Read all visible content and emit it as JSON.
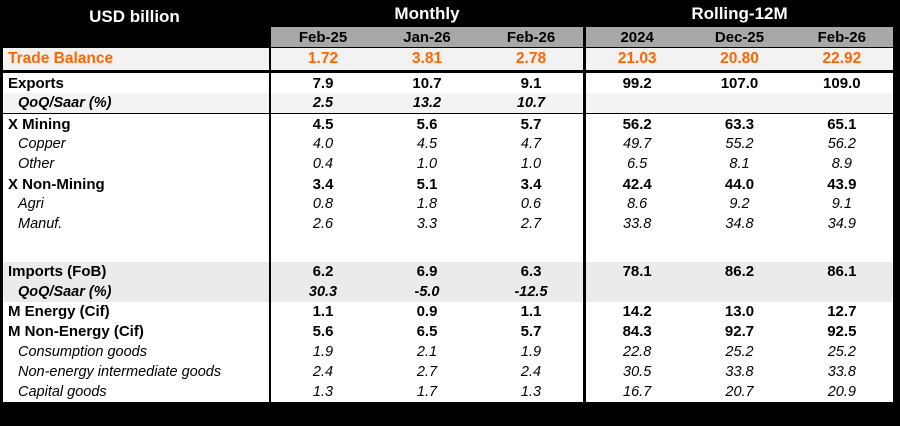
{
  "title": "USD billion",
  "colors": {
    "accent_orange": "#FF6600",
    "header_gray": "#A8A8A8",
    "trade_row_bg": "#F2F2F2",
    "shaded_row_light": "#F3F3F3",
    "shaded_row_medium": "#EBEBEB",
    "frame_black": "#000000"
  },
  "chart_data": {
    "type": "table",
    "title": "USD billion",
    "column_groups": [
      {
        "label": "Monthly",
        "columns": [
          "Feb-25",
          "Jan-26",
          "Feb-26"
        ]
      },
      {
        "label": "Rolling-12M",
        "columns": [
          "2024",
          "Dec-25",
          "Feb-26"
        ]
      }
    ],
    "rows": [
      {
        "label": "Trade Balance",
        "style": "trade",
        "values": [
          "1.72",
          "3.81",
          "2.78",
          "21.03",
          "20.80",
          "22.92"
        ],
        "divider_below": "thick"
      },
      {
        "label": "Exports",
        "style": "main",
        "values": [
          "7.9",
          "10.7",
          "9.1",
          "99.2",
          "107.0",
          "109.0"
        ]
      },
      {
        "label": "QoQ/Saar (%)",
        "style": "qoq",
        "shaded": "light",
        "values": [
          "2.5",
          "13.2",
          "10.7",
          "",
          "",
          ""
        ],
        "divider_below": "thin"
      },
      {
        "label": "X Mining",
        "style": "main",
        "values": [
          "4.5",
          "5.6",
          "5.7",
          "56.2",
          "63.3",
          "65.1"
        ]
      },
      {
        "label": "Copper",
        "style": "sub",
        "values": [
          "4.0",
          "4.5",
          "4.7",
          "49.7",
          "55.2",
          "56.2"
        ]
      },
      {
        "label": "Other",
        "style": "sub",
        "values": [
          "0.4",
          "1.0",
          "1.0",
          "6.5",
          "8.1",
          "8.9"
        ]
      },
      {
        "label": "X Non-Mining",
        "style": "main",
        "values": [
          "3.4",
          "5.1",
          "3.4",
          "42.4",
          "44.0",
          "43.9"
        ]
      },
      {
        "label": "Agri",
        "style": "sub",
        "values": [
          "0.8",
          "1.8",
          "0.6",
          "8.6",
          "9.2",
          "9.1"
        ]
      },
      {
        "label": "Manuf.",
        "style": "sub",
        "values": [
          "2.6",
          "3.3",
          "2.7",
          "33.8",
          "34.8",
          "34.9"
        ]
      },
      {
        "label": "",
        "style": "spacer",
        "values": [
          "",
          "",
          "",
          "",
          "",
          ""
        ]
      },
      {
        "label": "Imports (FoB)",
        "style": "main",
        "shaded": "med",
        "values": [
          "6.2",
          "6.9",
          "6.3",
          "78.1",
          "86.2",
          "86.1"
        ]
      },
      {
        "label": "QoQ/Saar (%)",
        "style": "qoq",
        "shaded": "med",
        "values": [
          "30.3",
          "-5.0",
          "-12.5",
          "",
          "",
          ""
        ]
      },
      {
        "label": "M Energy (Cif)",
        "style": "main",
        "values": [
          "1.1",
          "0.9",
          "1.1",
          "14.2",
          "13.0",
          "12.7"
        ]
      },
      {
        "label": "M Non-Energy (Cif)",
        "style": "main",
        "values": [
          "5.6",
          "6.5",
          "5.7",
          "84.3",
          "92.7",
          "92.5"
        ]
      },
      {
        "label": "Consumption goods",
        "style": "sub",
        "values": [
          "1.9",
          "2.1",
          "1.9",
          "22.8",
          "25.2",
          "25.2"
        ]
      },
      {
        "label": "Non-energy intermediate goods",
        "style": "sub",
        "values": [
          "2.4",
          "2.7",
          "2.4",
          "30.5",
          "33.8",
          "33.8"
        ]
      },
      {
        "label": "Capital goods",
        "style": "sub",
        "values": [
          "1.3",
          "1.7",
          "1.3",
          "16.7",
          "20.7",
          "20.9"
        ]
      }
    ]
  }
}
